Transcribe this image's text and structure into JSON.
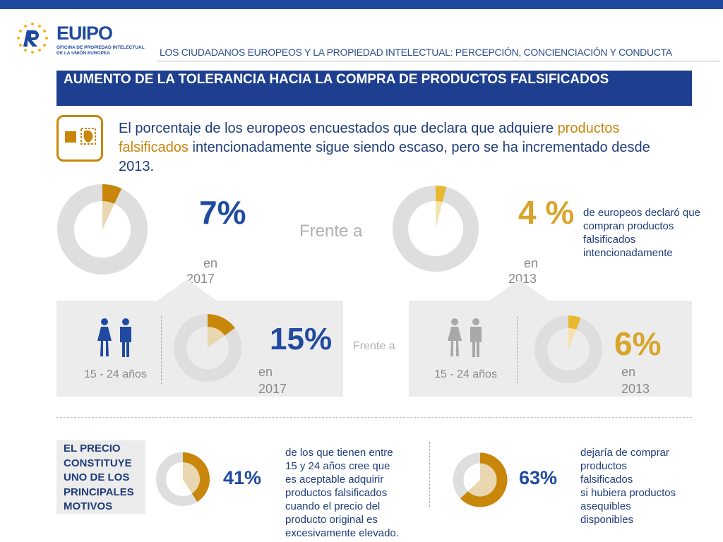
{
  "header": {
    "title": "LOS CIUDADANOS EUROPEOS Y LA PROPIEDAD INTELECTUAL: PERCEPCIÓN, CONCIENCIACIÓN Y CONDUCTA",
    "logo_name": "EUIPO",
    "logo_sub1": "OFICINA DE PROPIEDAD INTELECTUAL",
    "logo_sub2": "DE LA UNIÓN EUROPEA"
  },
  "section_title": "AUMENTO DE LA TOLERANCIA HACIA LA COMPRA DE PRODUCTOS FALSIFICADOS",
  "intro": {
    "part1": "El porcentaje de los europeos encuestados que declara que adquiere ",
    "highlight": "productos falsificados",
    "part2": " intencionadamente sigue siendo escaso, pero se ha incrementado desde 2013."
  },
  "overall": {
    "pct_2017": "7%",
    "value_2017": 7,
    "en_2017": "en",
    "year_2017": "2017",
    "frente": "Frente a",
    "pct_2013": "4 %",
    "value_2013": 4,
    "en_2013": "en",
    "year_2013": "2013",
    "description": "de europeos declaró que compran productos falsificados intencionadamente"
  },
  "youth": {
    "age_label_left": "15 - 24 años",
    "pct_2017": "15%",
    "value_2017": 15,
    "en_2017": "en",
    "year_2017": "2017",
    "frente": "Frente a",
    "age_label_right": "15 - 24 años",
    "pct_2013": "6%",
    "value_2013": 6,
    "en_2013": "en",
    "year_2013": "2013"
  },
  "motives": {
    "box_lines": [
      "EL PRECIO",
      "CONSTITUYE",
      "UNO DE LOS",
      "PRINCIPALES",
      "MOTIVOS"
    ],
    "pct_a": "41%",
    "value_a": 41,
    "text_a": [
      "de los que tienen entre",
      "15 y 24 años cree que",
      "es aceptable adquirir",
      "productos falsificados",
      "cuando el precio del",
      "producto original es",
      "excesivamente elevado."
    ],
    "pct_b": "63%",
    "value_b": 63,
    "text_b": [
      "dejaría de comprar",
      "productos",
      "falsificados",
      "si hubiera productos",
      "asequibles",
      "disponibles"
    ]
  },
  "colors": {
    "brand_blue": "#1f4aa0",
    "title_bar": "#1e3f8f",
    "gold": "#c8860b",
    "light_gold": "#e8c97a",
    "yellow": "#e8b830",
    "ring_grey": "#dedede"
  },
  "icons": [
    "eu-stars-logo-icon",
    "shop-icon",
    "woman-man-icon"
  ]
}
